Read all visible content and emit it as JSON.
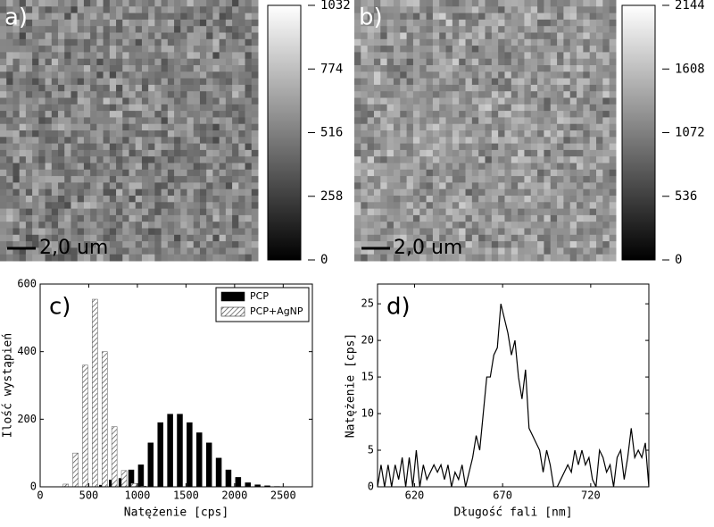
{
  "chart_data": [
    {
      "type": "image",
      "panel_label": "a)",
      "scale_bar_label": "2,0 um",
      "colorbar": {
        "ylim": [
          0,
          1032
        ],
        "yticks": [
          0,
          258,
          516,
          774,
          1032
        ]
      }
    },
    {
      "type": "image",
      "panel_label": "b)",
      "scale_bar_label": "2,0 um",
      "colorbar": {
        "ylim": [
          0,
          2144
        ],
        "yticks": [
          0,
          536,
          1072,
          1608,
          2144
        ]
      }
    },
    {
      "type": "bar",
      "panel_label": "c)",
      "x_label": "Natężenie [cps]",
      "y_label": "Ilość wystąpień",
      "x": [
        300,
        400,
        500,
        600,
        700,
        800,
        900,
        1000,
        1100,
        1200,
        1300,
        1400,
        1500,
        1600,
        1700,
        1800,
        1900,
        2000,
        2100,
        2200,
        2300,
        2400
      ],
      "series": [
        {
          "name": "PCP",
          "color": "#000000",
          "values": [
            0,
            0,
            0,
            5,
            20,
            25,
            50,
            65,
            130,
            190,
            215,
            215,
            190,
            160,
            130,
            85,
            50,
            28,
            12,
            6,
            3,
            1
          ]
        },
        {
          "name": "PCP+AgNP",
          "color": "#ffffff",
          "hatch": true,
          "values": [
            8,
            100,
            360,
            555,
            400,
            178,
            48,
            10,
            2,
            0,
            0,
            0,
            0,
            0,
            0,
            0,
            0,
            0,
            0,
            0,
            0,
            0
          ]
        }
      ],
      "xlim": [
        0,
        2800
      ],
      "xticks": [
        0,
        500,
        1000,
        1500,
        2000,
        2500
      ],
      "ylim": [
        0,
        600
      ],
      "yticks": [
        0,
        200,
        400,
        600
      ],
      "legend": "upper right"
    },
    {
      "type": "line",
      "panel_label": "d)",
      "x_label": "Długość fali [nm]",
      "y_label": "Natężenie [cps]",
      "color": "#000000",
      "x": [
        599,
        601,
        603,
        605,
        607,
        609,
        611,
        613,
        615,
        617,
        619,
        621,
        623,
        625,
        627,
        629,
        631,
        633,
        635,
        637,
        639,
        641,
        643,
        645,
        647,
        649,
        651,
        653,
        655,
        657,
        659,
        661,
        663,
        665,
        667,
        669,
        671,
        673,
        675,
        677,
        679,
        681,
        683,
        685,
        687,
        689,
        691,
        693,
        695,
        697,
        699,
        701,
        703,
        705,
        707,
        709,
        711,
        713,
        715,
        717,
        719,
        721,
        723,
        725,
        727,
        729,
        731,
        733,
        735,
        737,
        739,
        741,
        743,
        745,
        747,
        749,
        751,
        753
      ],
      "values": [
        0,
        3,
        0,
        3,
        0,
        3,
        1,
        4,
        0,
        4,
        0,
        5,
        0,
        3,
        1,
        2,
        3,
        2,
        3,
        1,
        3,
        0,
        2,
        1,
        3,
        0,
        2,
        4,
        7,
        5,
        10,
        15,
        15,
        18,
        19,
        25,
        23,
        21,
        18,
        20,
        15,
        12,
        16,
        8,
        7,
        6,
        5,
        2,
        5,
        3,
        0,
        0,
        1,
        2,
        3,
        2,
        5,
        3,
        5,
        3,
        4,
        1,
        0,
        5,
        4,
        2,
        3,
        0,
        4,
        5,
        1,
        4,
        8,
        4,
        5,
        4,
        6,
        0
      ],
      "xlim": [
        599,
        753
      ],
      "xticks": [
        620,
        670,
        720
      ],
      "ylim": [
        0,
        27.7
      ],
      "yticks": [
        0,
        5,
        10,
        15,
        20,
        25
      ]
    }
  ]
}
